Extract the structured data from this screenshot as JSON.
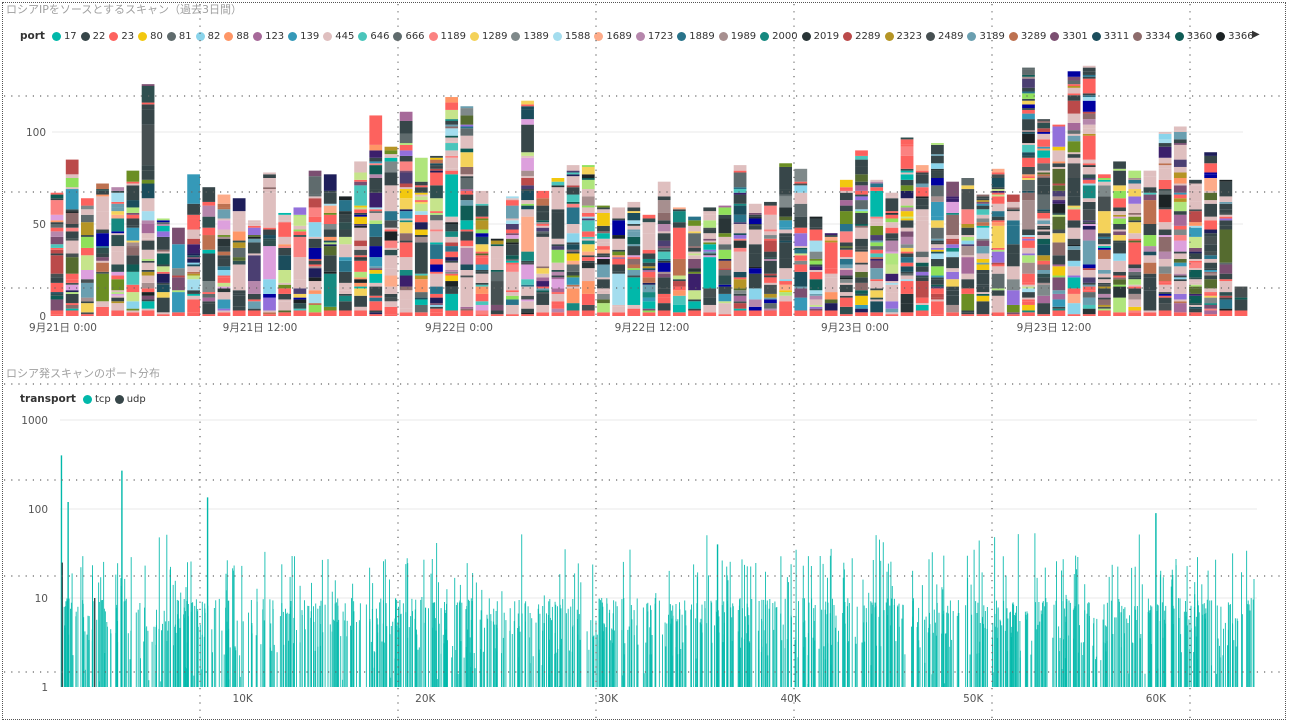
{
  "charts": [
    {
      "title": "ロシアIPをソースとするスキャン（過去3日間）",
      "legend_title": "port",
      "legend_more_icon": "triangle-right-icon",
      "legend": [
        {
          "label": "17",
          "color": "#01B8AA"
        },
        {
          "label": "22",
          "color": "#374649"
        },
        {
          "label": "23",
          "color": "#FD625E"
        },
        {
          "label": "80",
          "color": "#F2C80F"
        },
        {
          "label": "81",
          "color": "#5F6B6D"
        },
        {
          "label": "82",
          "color": "#8AD4EB"
        },
        {
          "label": "88",
          "color": "#FE9666"
        },
        {
          "label": "123",
          "color": "#A66999"
        },
        {
          "label": "139",
          "color": "#3599B8"
        },
        {
          "label": "445",
          "color": "#DFBFBF"
        },
        {
          "label": "646",
          "color": "#4AC5BB"
        },
        {
          "label": "666",
          "color": "#5F6B6D"
        },
        {
          "label": "1189",
          "color": "#FB8281"
        },
        {
          "label": "1289",
          "color": "#F4D25A"
        },
        {
          "label": "1389",
          "color": "#7F898A"
        },
        {
          "label": "1588",
          "color": "#A4DDEE"
        },
        {
          "label": "1689",
          "color": "#FDAB89"
        },
        {
          "label": "1723",
          "color": "#B687AC"
        },
        {
          "label": "1889",
          "color": "#28738A"
        },
        {
          "label": "1989",
          "color": "#A78F8F"
        },
        {
          "label": "2000",
          "color": "#168980"
        },
        {
          "label": "2019",
          "color": "#293537"
        },
        {
          "label": "2289",
          "color": "#BB4A4A"
        },
        {
          "label": "2323",
          "color": "#B59525"
        },
        {
          "label": "2489",
          "color": "#475052"
        },
        {
          "label": "3189",
          "color": "#6A9FB0"
        },
        {
          "label": "3289",
          "color": "#BD7150"
        },
        {
          "label": "3301",
          "color": "#7B4F71"
        },
        {
          "label": "3311",
          "color": "#1B4D5C"
        },
        {
          "label": "3334",
          "color": "#8D6B6B"
        },
        {
          "label": "3360",
          "color": "#0F5C55"
        },
        {
          "label": "3366",
          "color": "#1C2325"
        }
      ],
      "chart_data": {
        "type": "bar",
        "stacked": true,
        "x_type": "datetime",
        "x_start": "9月21日 0:00",
        "x_tick_labels": [
          "9月21日 0:00",
          "9月21日 12:00",
          "9月22日 0:00",
          "9月22日 12:00",
          "9月23日 0:00",
          "9月23日 12:00"
        ],
        "y_ticks": [
          0,
          50,
          100
        ],
        "ylim": [
          0,
          135
        ],
        "grid": true,
        "legend_position": "top",
        "totals": [
          67,
          85,
          64,
          72,
          70,
          79,
          126,
          53,
          48,
          77,
          70,
          66,
          64,
          52,
          78,
          56,
          59,
          79,
          77,
          65,
          84,
          109,
          92,
          111,
          86,
          87,
          119,
          114,
          68,
          42,
          65,
          117,
          68,
          75,
          82,
          82,
          60,
          59,
          62,
          55,
          73,
          59,
          54,
          59,
          60,
          82,
          61,
          62,
          83,
          80,
          54,
          45,
          74,
          90,
          74,
          67,
          97,
          82,
          94,
          73,
          75,
          66,
          80,
          66,
          135,
          107,
          104,
          133,
          136,
          77,
          84,
          79,
          79,
          100,
          103,
          74,
          89,
          74,
          16
        ]
      }
    },
    {
      "title": "ロシア発スキャンのポート分布",
      "legend_title": "transport",
      "legend": [
        {
          "label": "tcp",
          "color": "#01B8AA"
        },
        {
          "label": "udp",
          "color": "#374649"
        }
      ],
      "chart_data": {
        "type": "bar",
        "y_scale": "log",
        "y_ticks": [
          1,
          10,
          100,
          1000
        ],
        "x_ticks": [
          "10K",
          "20K",
          "30K",
          "40K",
          "50K",
          "60K"
        ],
        "xlim": [
          0,
          65535
        ],
        "ylim": [
          1,
          1000
        ],
        "grid": true,
        "legend_position": "top",
        "series": [
          {
            "name": "tcp",
            "peaks": [
              [
                80,
                400
              ],
              [
                445,
                120
              ],
              [
                3389,
                270
              ],
              [
                8080,
                135
              ],
              [
                36000,
                40
              ],
              [
                60000,
                90
              ]
            ]
          },
          {
            "name": "udp",
            "peaks": [
              [
                123,
                25
              ],
              [
                1900,
                10
              ]
            ]
          }
        ]
      }
    }
  ]
}
